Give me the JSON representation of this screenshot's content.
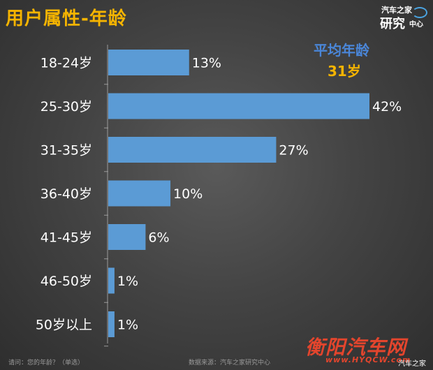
{
  "title": "用户属性-年龄",
  "logo": {
    "line1": "汽车之家",
    "line2": "研究",
    "line3": "中心"
  },
  "average": {
    "label": "平均年龄",
    "value": "31岁"
  },
  "chart_data": {
    "type": "bar",
    "orientation": "horizontal",
    "categories": [
      "18-24岁",
      "25-30岁",
      "31-35岁",
      "36-40岁",
      "41-45岁",
      "46-50岁",
      "50岁以上"
    ],
    "values": [
      13,
      42,
      27,
      10,
      6,
      1,
      1
    ],
    "data_labels": [
      "13%",
      "42%",
      "27%",
      "10%",
      "6%",
      "1%",
      "1%"
    ],
    "unit": "%",
    "xlim": [
      0,
      42
    ],
    "bar_color": "#5b9bd5",
    "grid": false
  },
  "footer": {
    "question": "请问：您的年龄？（单选）",
    "source": "数据来源：汽车之家研究中心"
  },
  "watermark": {
    "site": "衡阳汽车网",
    "url": "www.HYQCW.com",
    "brand": "汽车之家"
  },
  "colors": {
    "title": "#f5b400",
    "average_label": "#4a86d8",
    "average_value": "#f5b400",
    "watermark": "#e3452d"
  }
}
